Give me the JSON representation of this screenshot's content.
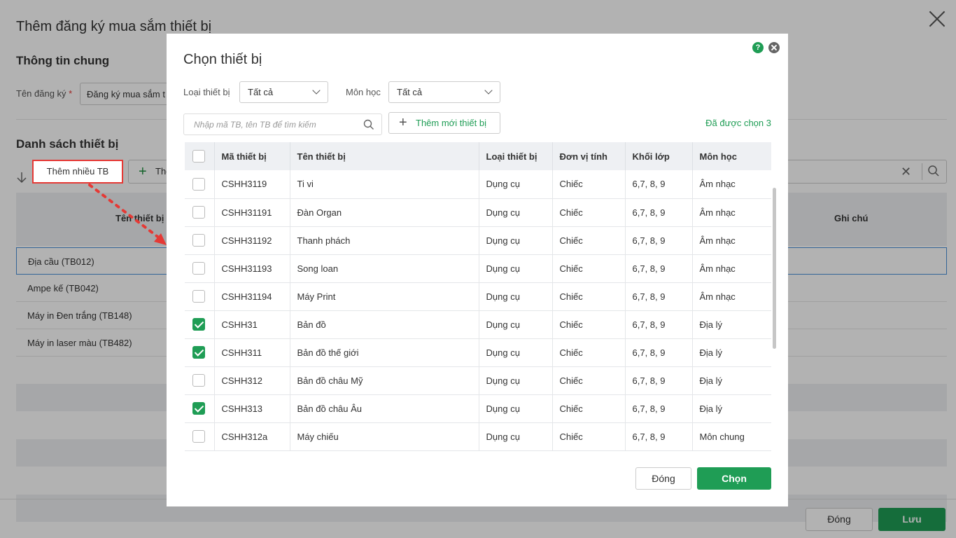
{
  "background": {
    "title": "Thêm đăng ký mua sắm thiết bị",
    "general_section": "Thông tin chung",
    "reg_label": "Tên đăng ký",
    "required_mark": "*",
    "reg_value": "Đăng ký mua sắm t",
    "list_section": "Danh sách thiết bị",
    "add_multi_label": "Thêm nhiều TB",
    "add_label": "Thêm",
    "col_name": "Tên thiết bị",
    "col_note": "Ghi chú",
    "rows": [
      "Địa cầu (TB012)",
      "Ampe kế (TB042)",
      "Máy in Đen trắng (TB148)",
      "Máy in laser màu (TB482)"
    ],
    "close_label": "Đóng",
    "save_label": "Lưu"
  },
  "modal": {
    "title": "Chọn thiết bị",
    "help_label": "?",
    "filters": {
      "type_label": "Loại thiết bị",
      "type_value": "Tất cả",
      "subject_label": "Môn học",
      "subject_value": "Tất cả"
    },
    "search_placeholder": "Nhập mã TB, tên TB để tìm kiếm",
    "add_new_label": "Thêm mới thiết bị",
    "selected_count": "Đã được chọn 3",
    "columns": [
      "Mã thiết bị",
      "Tên thiết bị",
      "Loại thiết bị",
      "Đơn vị tính",
      "Khối lớp",
      "Môn học"
    ],
    "rows": [
      {
        "checked": false,
        "code": "CSHH3119",
        "name": "Ti vi",
        "type": "Dụng cụ",
        "unit": "Chiếc",
        "grade": "6,7, 8, 9",
        "subject": "Âm nhạc"
      },
      {
        "checked": false,
        "code": "CSHH31191",
        "name": "Đàn Organ",
        "type": "Dụng cụ",
        "unit": "Chiếc",
        "grade": "6,7, 8, 9",
        "subject": "Âm nhạc"
      },
      {
        "checked": false,
        "code": "CSHH31192",
        "name": "Thanh phách",
        "type": "Dụng cụ",
        "unit": "Chiếc",
        "grade": "6,7, 8, 9",
        "subject": "Âm nhạc"
      },
      {
        "checked": false,
        "code": "CSHH31193",
        "name": "Song loan",
        "type": "Dụng cụ",
        "unit": "Chiếc",
        "grade": "6,7, 8, 9",
        "subject": "Âm nhạc"
      },
      {
        "checked": false,
        "code": "CSHH31194",
        "name": "Máy Print",
        "type": "Dụng cụ",
        "unit": "Chiếc",
        "grade": "6,7, 8, 9",
        "subject": "Âm nhạc"
      },
      {
        "checked": true,
        "code": "CSHH31",
        "name": "Bản đồ",
        "type": "Dụng cụ",
        "unit": "Chiếc",
        "grade": "6,7, 8, 9",
        "subject": "Địa lý"
      },
      {
        "checked": true,
        "code": "CSHH311",
        "name": "Bản đồ thế giới",
        "type": "Dụng cụ",
        "unit": "Chiếc",
        "grade": "6,7, 8, 9",
        "subject": "Địa lý"
      },
      {
        "checked": false,
        "code": "CSHH312",
        "name": "Bản đồ châu Mỹ",
        "type": "Dụng cụ",
        "unit": "Chiếc",
        "grade": "6,7, 8, 9",
        "subject": "Địa lý"
      },
      {
        "checked": true,
        "code": "CSHH313",
        "name": "Bản đồ châu Âu",
        "type": "Dụng cụ",
        "unit": "Chiếc",
        "grade": "6,7, 8, 9",
        "subject": "Địa lý"
      },
      {
        "checked": false,
        "code": "CSHH312a",
        "name": "Máy chiếu",
        "type": "Dụng cụ",
        "unit": "Chiếc",
        "grade": "6,7, 8, 9",
        "subject": "Môn chung"
      }
    ],
    "close_label": "Đóng",
    "choose_label": "Chọn"
  },
  "colors": {
    "accent": "#1f9d55",
    "highlight": "#e53935"
  }
}
